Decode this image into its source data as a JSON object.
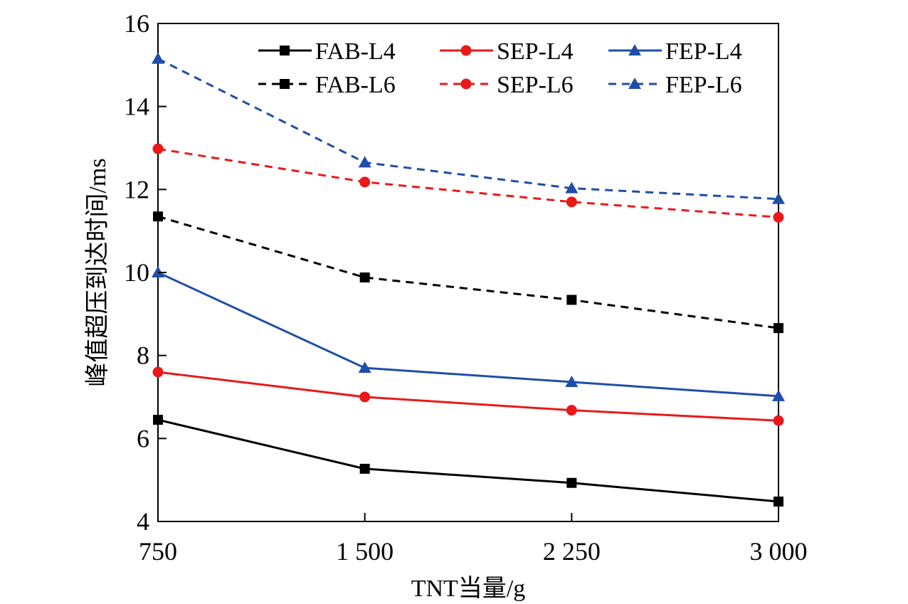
{
  "chart_data": {
    "type": "line",
    "xlabel": "TNT当量/g",
    "ylabel": "峰值超压到达时间/ms",
    "x": [
      750,
      1500,
      2250,
      3000
    ],
    "x_tick_labels": [
      "750",
      "1 500",
      "2 250",
      "3 000"
    ],
    "xlim": [
      750,
      3000
    ],
    "ylim": [
      4,
      16
    ],
    "y_ticks": [
      4,
      6,
      8,
      10,
      12,
      14,
      16
    ],
    "y_tick_labels": [
      "4",
      "6",
      "8",
      "10",
      "12",
      "14",
      "16"
    ],
    "grid": false,
    "legend_position": "top-right",
    "series": [
      {
        "name": "FAB-L4",
        "values": [
          6.45,
          5.27,
          4.93,
          4.48
        ],
        "color": "#000000",
        "marker": "square",
        "dashed": false
      },
      {
        "name": "SEP-L4",
        "values": [
          7.6,
          7.0,
          6.68,
          6.43
        ],
        "color": "#e8191b",
        "marker": "circle",
        "dashed": false
      },
      {
        "name": "FEP-L4",
        "values": [
          10.0,
          7.7,
          7.36,
          7.02
        ],
        "color": "#1f4ea8",
        "marker": "triangle",
        "dashed": false
      },
      {
        "name": "FAB-L6",
        "values": [
          11.35,
          9.88,
          9.34,
          8.66
        ],
        "color": "#000000",
        "marker": "square",
        "dashed": true
      },
      {
        "name": "SEP-L6",
        "values": [
          12.98,
          12.18,
          11.7,
          11.33
        ],
        "color": "#e8191b",
        "marker": "circle",
        "dashed": true
      },
      {
        "name": "FEP-L6",
        "values": [
          15.15,
          12.65,
          12.03,
          11.77
        ],
        "color": "#1f4ea8",
        "marker": "triangle",
        "dashed": true
      }
    ]
  }
}
